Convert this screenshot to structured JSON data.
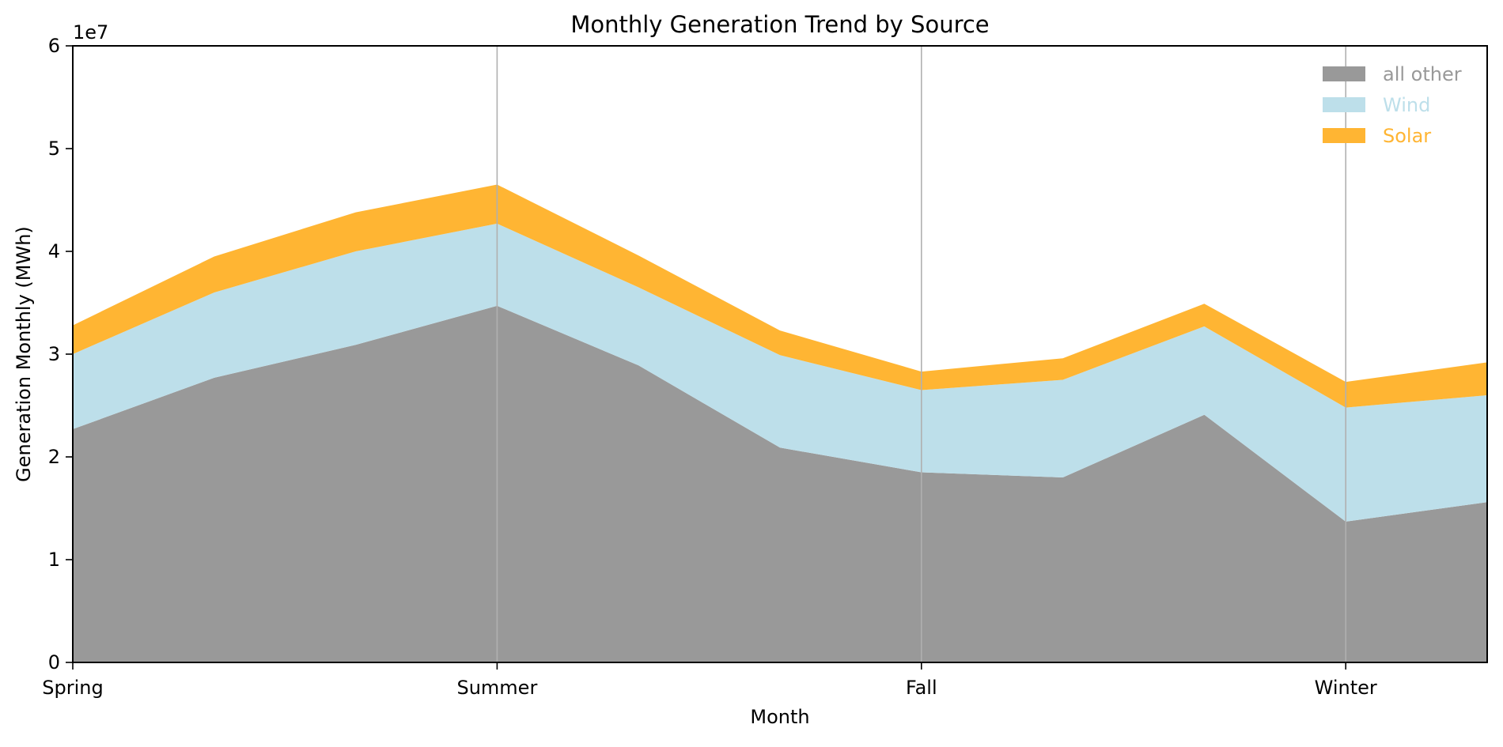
{
  "chart_data": {
    "type": "area",
    "stacked": true,
    "title": "Monthly Generation Trend by Source",
    "xlabel": "Month",
    "ylabel": "Generation Monthly (MWh)",
    "y_offset_text": "1e7",
    "x": [
      0,
      1,
      2,
      3,
      4,
      5,
      6,
      7,
      8,
      9,
      10
    ],
    "xlim": [
      0,
      10
    ],
    "ylim": [
      0,
      60000000
    ],
    "x_ticks": [
      {
        "x": 0,
        "label": "Spring"
      },
      {
        "x": 3,
        "label": "Summer"
      },
      {
        "x": 6,
        "label": "Fall"
      },
      {
        "x": 9,
        "label": "Winter"
      }
    ],
    "y_ticks": [
      {
        "value": 0,
        "label": "0"
      },
      {
        "value": 10000000,
        "label": "1"
      },
      {
        "value": 20000000,
        "label": "2"
      },
      {
        "value": 30000000,
        "label": "3"
      },
      {
        "value": 40000000,
        "label": "4"
      },
      {
        "value": 50000000,
        "label": "5"
      },
      {
        "value": 60000000,
        "label": "6"
      }
    ],
    "grid": "vertical at x ticks",
    "legend_position": "top-right",
    "series": [
      {
        "name": "all other",
        "color": "#999999",
        "values": [
          22700000,
          27700000,
          30900000,
          34700000,
          28900000,
          20900000,
          18500000,
          18000000,
          24100000,
          13700000,
          15600000
        ]
      },
      {
        "name": "Wind",
        "color": "#bddfea",
        "values": [
          7300000,
          8300000,
          9100000,
          8000000,
          7600000,
          9000000,
          8000000,
          9500000,
          8600000,
          11100000,
          10400000
        ]
      },
      {
        "name": "Solar",
        "color": "#ffb533",
        "values": [
          2800000,
          3500000,
          3800000,
          3800000,
          3100000,
          2400000,
          1800000,
          2100000,
          2200000,
          2500000,
          3200000
        ]
      }
    ]
  }
}
